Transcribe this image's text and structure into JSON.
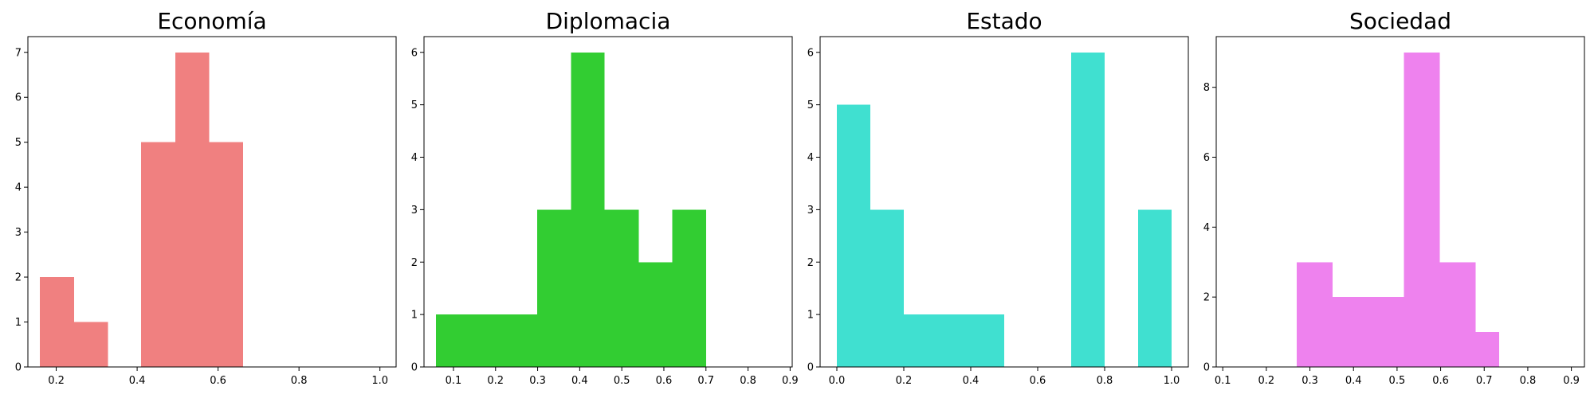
{
  "chart_data": [
    {
      "type": "bar",
      "title": "Economía",
      "color": "#f08080",
      "xlim": [
        0.13,
        1.04
      ],
      "ylim": [
        0,
        7.35
      ],
      "xticks": [
        0.2,
        0.4,
        0.6,
        0.8,
        1.0
      ],
      "xtick_labels": [
        "0.2",
        "0.4",
        "0.6",
        "0.8",
        "1.0"
      ],
      "yticks": [
        0,
        1,
        2,
        3,
        4,
        5,
        6,
        7
      ],
      "ytick_labels": [
        "0",
        "1",
        "2",
        "3",
        "4",
        "5",
        "6",
        "7"
      ],
      "bins": [
        {
          "x0": 0.16,
          "x1": 0.244,
          "count": 2
        },
        {
          "x0": 0.244,
          "x1": 0.328,
          "count": 1
        },
        {
          "x0": 0.41,
          "x1": 0.494,
          "count": 5
        },
        {
          "x0": 0.494,
          "x1": 0.578,
          "count": 7
        },
        {
          "x0": 0.578,
          "x1": 0.662,
          "count": 5
        }
      ]
    },
    {
      "type": "bar",
      "title": "Diplomacia",
      "color": "#32cd32",
      "xlim": [
        0.03,
        0.905
      ],
      "ylim": [
        0,
        6.3
      ],
      "xticks": [
        0.1,
        0.2,
        0.3,
        0.4,
        0.5,
        0.6,
        0.7,
        0.8,
        0.9
      ],
      "xtick_labels": [
        "0.1",
        "0.2",
        "0.3",
        "0.4",
        "0.5",
        "0.6",
        "0.7",
        "0.8",
        "0.9"
      ],
      "yticks": [
        0,
        1,
        2,
        3,
        4,
        5,
        6
      ],
      "ytick_labels": [
        "0",
        "1",
        "2",
        "3",
        "4",
        "5",
        "6"
      ],
      "bins": [
        {
          "x0": 0.058,
          "x1": 0.139,
          "count": 1
        },
        {
          "x0": 0.139,
          "x1": 0.219,
          "count": 1
        },
        {
          "x0": 0.219,
          "x1": 0.299,
          "count": 1
        },
        {
          "x0": 0.299,
          "x1": 0.379,
          "count": 3
        },
        {
          "x0": 0.379,
          "x1": 0.459,
          "count": 6
        },
        {
          "x0": 0.459,
          "x1": 0.54,
          "count": 3
        },
        {
          "x0": 0.54,
          "x1": 0.62,
          "count": 2
        },
        {
          "x0": 0.62,
          "x1": 0.7,
          "count": 3
        }
      ]
    },
    {
      "type": "bar",
      "title": "Estado",
      "color": "#40e0d0",
      "xlim": [
        -0.05,
        1.05
      ],
      "ylim": [
        0,
        6.3
      ],
      "xticks": [
        0.0,
        0.2,
        0.4,
        0.6,
        0.8,
        1.0
      ],
      "xtick_labels": [
        "0.0",
        "0.2",
        "0.4",
        "0.6",
        "0.8",
        "1.0"
      ],
      "yticks": [
        0,
        1,
        2,
        3,
        4,
        5,
        6
      ],
      "ytick_labels": [
        "0",
        "1",
        "2",
        "3",
        "4",
        "5",
        "6"
      ],
      "bins": [
        {
          "x0": 0.0,
          "x1": 0.1,
          "count": 5
        },
        {
          "x0": 0.1,
          "x1": 0.2,
          "count": 3
        },
        {
          "x0": 0.2,
          "x1": 0.3,
          "count": 1
        },
        {
          "x0": 0.3,
          "x1": 0.4,
          "count": 1
        },
        {
          "x0": 0.4,
          "x1": 0.5,
          "count": 1
        },
        {
          "x0": 0.7,
          "x1": 0.8,
          "count": 6
        },
        {
          "x0": 0.9,
          "x1": 1.0,
          "count": 3
        }
      ]
    },
    {
      "type": "bar",
      "title": "Sociedad",
      "color": "#ee82ee",
      "xlim": [
        0.085,
        0.93
      ],
      "ylim": [
        0,
        9.45
      ],
      "xticks": [
        0.1,
        0.2,
        0.3,
        0.4,
        0.5,
        0.6,
        0.7,
        0.8,
        0.9
      ],
      "xtick_labels": [
        "0.1",
        "0.2",
        "0.3",
        "0.4",
        "0.5",
        "0.6",
        "0.7",
        "0.8",
        "0.9"
      ],
      "yticks": [
        0,
        2,
        4,
        6,
        8
      ],
      "ytick_labels": [
        "0",
        "2",
        "4",
        "6",
        "8"
      ],
      "bins": [
        {
          "x0": 0.27,
          "x1": 0.352,
          "count": 3
        },
        {
          "x0": 0.352,
          "x1": 0.434,
          "count": 2
        },
        {
          "x0": 0.434,
          "x1": 0.516,
          "count": 2
        },
        {
          "x0": 0.516,
          "x1": 0.598,
          "count": 9
        },
        {
          "x0": 0.598,
          "x1": 0.68,
          "count": 3
        },
        {
          "x0": 0.68,
          "x1": 0.734,
          "count": 1
        }
      ]
    }
  ]
}
